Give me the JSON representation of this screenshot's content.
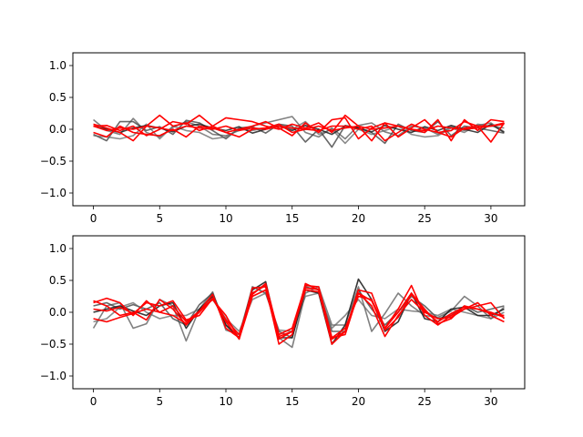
{
  "chart_data": [
    {
      "type": "line",
      "xlim": [
        -1.55,
        32.55
      ],
      "ylim": [
        -1.2,
        1.2
      ],
      "xticks": [
        0,
        5,
        10,
        15,
        20,
        25,
        30
      ],
      "yticks": [
        -1.0,
        -0.5,
        0.0,
        0.5,
        1.0
      ],
      "xtick_labels": [
        "0",
        "5",
        "10",
        "15",
        "20",
        "25",
        "30"
      ],
      "ytick_labels": [
        "−1.0",
        "−0.5",
        "0.0",
        "0.5",
        "1.0"
      ],
      "grid": false,
      "series": [
        {
          "color": "#555555",
          "opacity": 0.75,
          "values": [
            0.15,
            -0.02,
            -0.08,
            0.17,
            -0.05,
            -0.12,
            0.03,
            0.12,
            0.05,
            -0.08,
            -0.1,
            -0.02,
            0.05,
            0.1,
            0.15,
            0.2,
            -0.05,
            -0.12,
            0.02,
            -0.15,
            0.06,
            0.1,
            -0.04,
            -0.1,
            0.05,
            0.02,
            -0.08,
            0.04,
            -0.02,
            0.06,
            0.1,
            -0.04
          ]
        },
        {
          "color": "#444444",
          "opacity": 0.8,
          "values": [
            -0.08,
            -0.18,
            0.12,
            0.12,
            -0.02,
            0.04,
            -0.08,
            0.14,
            0.1,
            -0.02,
            -0.15,
            0.02,
            0.04,
            -0.06,
            0.08,
            0.05,
            -0.2,
            0.0,
            -0.28,
            0.06,
            0.02,
            -0.05,
            -0.22,
            0.08,
            -0.02,
            -0.05,
            0.12,
            -0.1,
            0.05,
            0.02,
            -0.02,
            -0.06
          ]
        },
        {
          "color": "#666666",
          "opacity": 0.75,
          "values": [
            -0.1,
            -0.12,
            -0.15,
            -0.1,
            0.08,
            -0.15,
            0.05,
            -0.02,
            -0.05,
            -0.15,
            -0.12,
            0.0,
            -0.02,
            0.02,
            0.08,
            0.0,
            0.12,
            -0.08,
            0.0,
            -0.22,
            0.0,
            -0.08,
            -0.02,
            0.05,
            -0.08,
            -0.12,
            -0.1,
            0.02,
            -0.05,
            0.08,
            0.05,
            0.02
          ]
        },
        {
          "color": "#222222",
          "opacity": 0.85,
          "values": [
            0.05,
            0.0,
            -0.05,
            0.02,
            0.06,
            0.02,
            -0.04,
            0.05,
            0.08,
            0.02,
            -0.02,
            0.04,
            -0.06,
            0.0,
            0.05,
            -0.02,
            0.06,
            0.0,
            -0.08,
            0.05,
            0.02,
            -0.04,
            0.06,
            0.0,
            -0.05,
            0.04,
            -0.02,
            0.06,
            0.0,
            -0.05,
            0.08,
            -0.05
          ]
        },
        {
          "color": "#ff0000",
          "opacity": 1,
          "values": [
            0.08,
            0.02,
            -0.05,
            -0.18,
            0.05,
            0.22,
            0.05,
            0.1,
            -0.02,
            0.05,
            0.18,
            0.15,
            0.12,
            0.05,
            0.0,
            0.08,
            0.02,
            0.1,
            -0.05,
            0.22,
            0.05,
            -0.18,
            0.1,
            0.05,
            0.0,
            -0.05,
            0.15,
            -0.18,
            0.15,
            -0.02,
            0.15,
            0.12
          ]
        },
        {
          "color": "#ff0000",
          "opacity": 1,
          "values": [
            0.05,
            0.06,
            -0.02,
            0.05,
            -0.1,
            0.0,
            0.12,
            0.08,
            0.22,
            0.05,
            -0.05,
            0.0,
            0.05,
            0.12,
            0.02,
            -0.1,
            0.1,
            -0.05,
            0.15,
            0.18,
            -0.15,
            0.02,
            0.1,
            -0.12,
            0.02,
            0.15,
            -0.05,
            -0.02,
            0.12,
            0.05,
            0.05,
            0.08
          ]
        },
        {
          "color": "#ff0000",
          "opacity": 1,
          "values": [
            -0.05,
            -0.12,
            0.05,
            -0.05,
            -0.08,
            -0.1,
            0.0,
            -0.12,
            0.05,
            0.02,
            -0.05,
            -0.12,
            0.0,
            0.02,
            0.08,
            -0.05,
            0.0,
            -0.02,
            0.05,
            0.05,
            0.0,
            0.05,
            -0.18,
            -0.05,
            0.08,
            0.0,
            -0.05,
            -0.12,
            0.02,
            0.05,
            -0.2,
            0.1
          ]
        },
        {
          "color": "#ff0000",
          "opacity": 1,
          "values": [
            0.05,
            -0.02,
            0.02,
            0.0,
            0.05,
            0.02,
            -0.02,
            0.05,
            0.02,
            0.0,
            0.05,
            -0.02,
            0.02,
            0.0,
            0.05,
            0.02,
            0.0,
            0.05,
            -0.02,
            0.02,
            0.05,
            0.0,
            0.02,
            0.05,
            0.0,
            -0.02,
            0.05,
            0.02,
            0.0,
            0.02,
            0.05,
            0.1
          ]
        }
      ]
    },
    {
      "type": "line",
      "xlim": [
        -1.55,
        32.55
      ],
      "ylim": [
        -1.2,
        1.2
      ],
      "xticks": [
        0,
        5,
        10,
        15,
        20,
        25,
        30
      ],
      "yticks": [
        -1.0,
        -0.5,
        0.0,
        0.5,
        1.0
      ],
      "xtick_labels": [
        "0",
        "5",
        "10",
        "15",
        "20",
        "25",
        "30"
      ],
      "ytick_labels": [
        "−1.0",
        "−0.5",
        "0.0",
        "0.5",
        "1.0"
      ],
      "grid": false,
      "series": [
        {
          "color": "#555555",
          "opacity": 0.75,
          "values": [
            -0.25,
            0.1,
            0.15,
            -0.25,
            -0.18,
            0.2,
            0.1,
            -0.45,
            0.05,
            0.32,
            -0.28,
            -0.35,
            0.38,
            0.4,
            -0.4,
            -0.55,
            0.3,
            0.4,
            -0.2,
            -0.2,
            0.4,
            -0.3,
            -0.02,
            0.3,
            0.1,
            -0.05,
            -0.08,
            0.02,
            0.25,
            0.1,
            -0.1,
            0.08
          ]
        },
        {
          "color": "#444444",
          "opacity": 0.8,
          "values": [
            0.1,
            0.15,
            0.05,
            0.12,
            0.05,
            0.15,
            -0.1,
            -0.2,
            0.12,
            0.3,
            -0.2,
            -0.4,
            0.4,
            0.3,
            -0.3,
            -0.4,
            0.4,
            0.35,
            -0.3,
            -0.3,
            0.35,
            0.05,
            -0.2,
            0.0,
            0.25,
            0.1,
            -0.1,
            -0.05,
            0.1,
            0.0,
            0.05,
            0.1
          ]
        },
        {
          "color": "#666666",
          "opacity": 0.75,
          "values": [
            -0.15,
            -0.1,
            0.08,
            0.15,
            0.0,
            -0.1,
            -0.05,
            -0.05,
            0.05,
            0.2,
            -0.1,
            -0.3,
            0.2,
            0.3,
            -0.28,
            -0.3,
            0.25,
            0.3,
            -0.25,
            -0.05,
            0.2,
            -0.05,
            -0.1,
            0.05,
            0.02,
            0.0,
            -0.05,
            0.05,
            0.0,
            -0.05,
            -0.1,
            0.0
          ]
        },
        {
          "color": "#222222",
          "opacity": 0.9,
          "values": [
            0.0,
            0.05,
            0.1,
            0.02,
            -0.05,
            0.1,
            0.15,
            -0.25,
            0.05,
            0.25,
            -0.2,
            -0.4,
            0.35,
            0.48,
            -0.4,
            -0.4,
            0.35,
            0.3,
            -0.5,
            -0.2,
            0.52,
            0.2,
            -0.3,
            -0.15,
            0.3,
            -0.1,
            -0.15,
            0.05,
            0.08,
            -0.05,
            -0.05,
            0.05
          ]
        },
        {
          "color": "#ff0000",
          "opacity": 1,
          "values": [
            0.15,
            0.22,
            0.15,
            -0.05,
            0.18,
            0.0,
            0.1,
            -0.15,
            0.02,
            0.2,
            -0.05,
            -0.42,
            0.38,
            0.4,
            -0.5,
            -0.35,
            0.45,
            0.35,
            -0.5,
            -0.3,
            0.35,
            0.3,
            -0.25,
            0.05,
            0.42,
            -0.05,
            -0.2,
            -0.05,
            0.05,
            0.15,
            -0.05,
            -0.15
          ]
        },
        {
          "color": "#ff0000",
          "opacity": 1,
          "values": [
            0.18,
            0.1,
            -0.05,
            0.0,
            -0.12,
            0.2,
            0.05,
            -0.2,
            0.02,
            0.28,
            -0.25,
            -0.4,
            0.28,
            0.45,
            -0.35,
            -0.25,
            0.42,
            0.4,
            -0.4,
            -0.35,
            0.3,
            0.1,
            -0.38,
            -0.05,
            0.2,
            0.0,
            -0.1,
            -0.08,
            0.05,
            0.1,
            0.15,
            -0.1
          ]
        },
        {
          "color": "#ff0000",
          "opacity": 1,
          "values": [
            -0.1,
            -0.15,
            -0.08,
            -0.02,
            0.15,
            0.1,
            0.18,
            -0.12,
            -0.05,
            0.22,
            -0.15,
            -0.42,
            0.25,
            0.35,
            -0.42,
            -0.3,
            0.35,
            0.32,
            -0.4,
            -0.25,
            0.25,
            0.2,
            -0.25,
            0.0,
            0.3,
            0.05,
            -0.18,
            -0.1,
            0.1,
            0.05,
            -0.02,
            -0.05
          ]
        },
        {
          "color": "#ff0000",
          "opacity": 1,
          "values": [
            0.05,
            0.02,
            0.08,
            -0.02,
            0.05,
            0.0,
            -0.05,
            -0.18,
            0.0,
            0.22,
            -0.12,
            -0.35,
            0.3,
            0.42,
            -0.38,
            -0.3,
            0.38,
            0.36,
            -0.42,
            -0.3,
            0.3,
            0.18,
            -0.28,
            -0.08,
            0.28,
            0.02,
            -0.15,
            -0.02,
            0.08,
            0.05,
            0.0,
            -0.08
          ]
        }
      ]
    }
  ]
}
